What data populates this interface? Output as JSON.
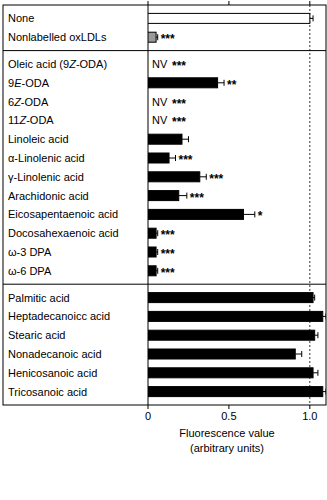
{
  "chart_data": {
    "type": "bar",
    "orientation": "horizontal",
    "x_label": "Fluorescence value\n(arbitrary units)",
    "categories": [
      "None",
      "Nonlabelled oxLDLs",
      "Oleic acid (9Z-ODA)",
      "9E-ODA",
      "6Z-ODA",
      "11Z-ODA",
      "Linoleic acid",
      "α-Linolenic acid",
      "γ-Linolenic acid",
      "Arachidonic acid",
      "Eicosapentaenoic acid",
      "Docosahexaenoic acid",
      "ω-3 DPA",
      "ω-6 DPA",
      "Palmitic acid",
      "Heptadecanoicc acid",
      "Stearic acid",
      "Nonadecanoic acid",
      "Henicosanoic acid",
      "Tricosanoic acid"
    ],
    "group_sizes": [
      2,
      12,
      6
    ],
    "values": [
      1.0,
      0.05,
      null,
      0.43,
      null,
      null,
      0.21,
      0.13,
      0.32,
      0.19,
      0.59,
      0.05,
      0.05,
      0.05,
      1.02,
      1.08,
      1.03,
      0.91,
      1.02,
      1.08
    ],
    "errors": [
      0.02,
      0.01,
      null,
      0.04,
      null,
      null,
      0.04,
      0.04,
      0.04,
      0.05,
      0.07,
      0.01,
      0.01,
      0.01,
      0.01,
      0.02,
      0.02,
      0.04,
      0.03,
      0.02
    ],
    "value_labels": [
      null,
      null,
      "NV",
      null,
      "NV",
      "NV",
      null,
      null,
      null,
      null,
      null,
      null,
      null,
      null,
      null,
      null,
      null,
      null,
      null,
      null
    ],
    "annotations": [
      null,
      "***",
      "***",
      "**",
      "***",
      "***",
      null,
      "***",
      "***",
      "***",
      "*",
      "***",
      "***",
      "***",
      null,
      null,
      null,
      null,
      null,
      null
    ],
    "colors": [
      "#ffffff",
      "#9a9a9a",
      "#000000",
      "#000000",
      "#000000",
      "#000000",
      "#000000",
      "#000000",
      "#000000",
      "#000000",
      "#000000",
      "#000000",
      "#000000",
      "#000000",
      "#000000",
      "#000000",
      "#000000",
      "#000000",
      "#000000",
      "#000000"
    ],
    "xlim": [
      0,
      1.1
    ],
    "xticks": [
      0,
      0.5,
      {
        "value": 1,
        "label": "1.0"
      }
    ],
    "reference_line": 1
  }
}
